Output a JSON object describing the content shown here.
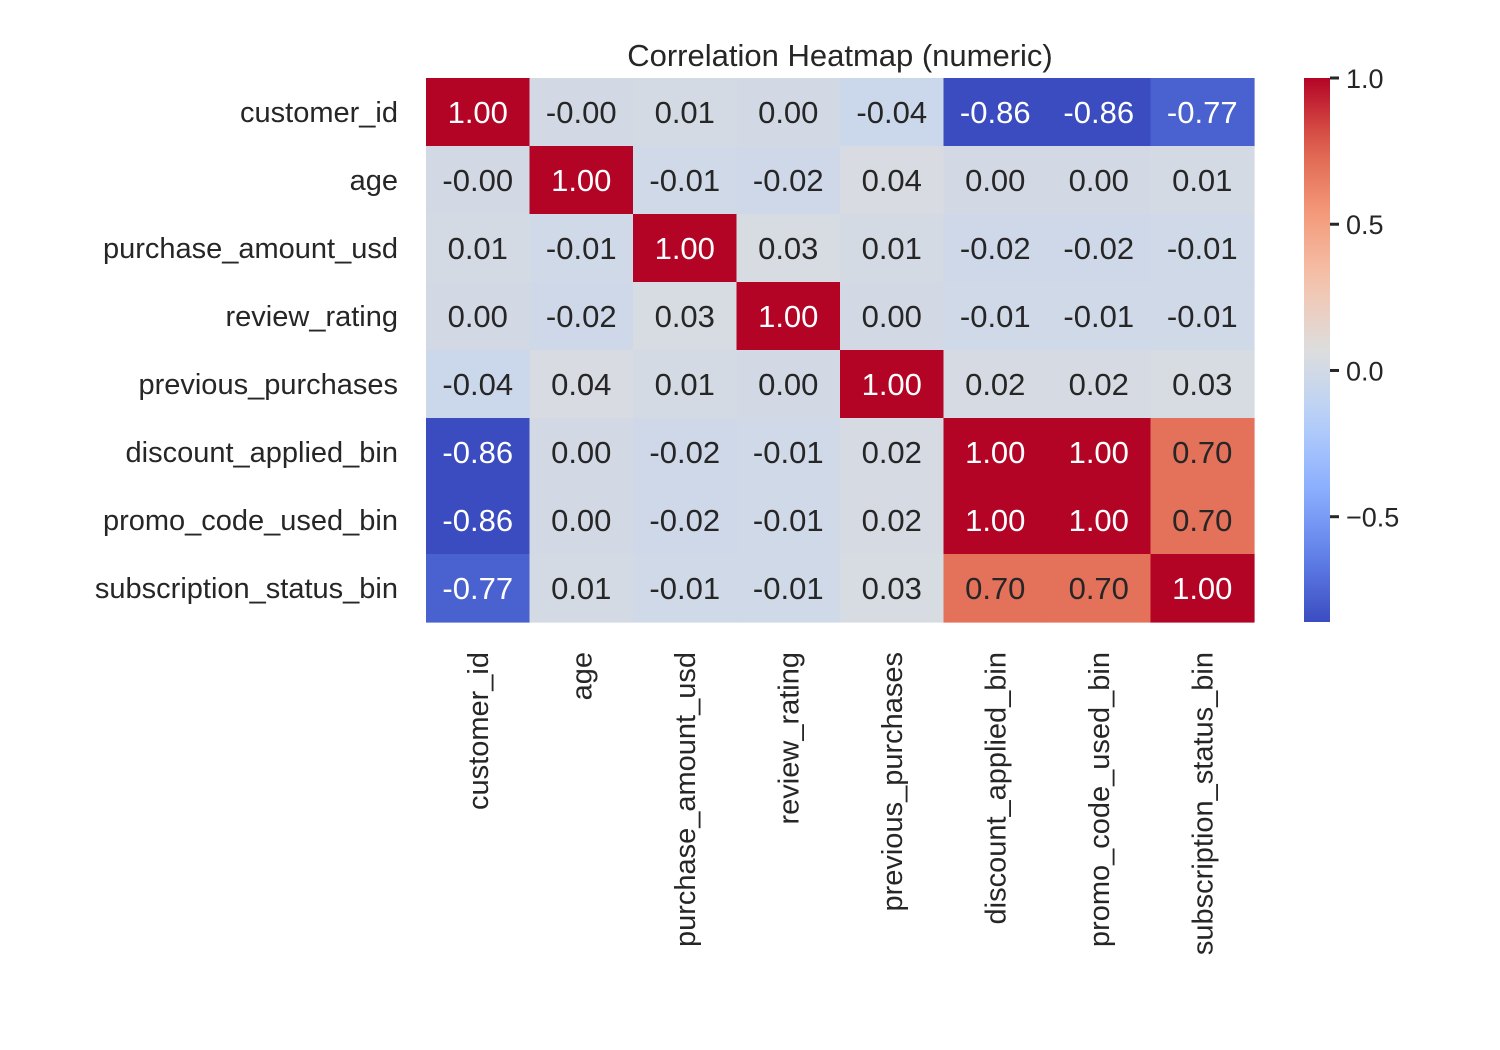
{
  "chart_data": {
    "type": "heatmap",
    "title": "Correlation Heatmap (numeric)",
    "xlabel": "",
    "ylabel": "",
    "colormap": "coolwarm",
    "vmin": -0.86,
    "vmax": 1.0,
    "row_labels": [
      "customer_id",
      "age",
      "purchase_amount_usd",
      "review_rating",
      "previous_purchases",
      "discount_applied_bin",
      "promo_code_used_bin",
      "subscription_status_bin"
    ],
    "col_labels": [
      "customer_id",
      "age",
      "purchase_amount_usd",
      "review_rating",
      "previous_purchases",
      "discount_applied_bin",
      "promo_code_used_bin",
      "subscription_status_bin"
    ],
    "values": [
      [
        1.0,
        -0.0,
        0.01,
        0.0,
        -0.04,
        -0.86,
        -0.86,
        -0.77
      ],
      [
        -0.0,
        1.0,
        -0.01,
        -0.02,
        0.04,
        0.0,
        0.0,
        0.01
      ],
      [
        0.01,
        -0.01,
        1.0,
        0.03,
        0.01,
        -0.02,
        -0.02,
        -0.01
      ],
      [
        0.0,
        -0.02,
        0.03,
        1.0,
        0.0,
        -0.01,
        -0.01,
        -0.01
      ],
      [
        -0.04,
        0.04,
        0.01,
        0.0,
        1.0,
        0.02,
        0.02,
        0.03
      ],
      [
        -0.86,
        0.0,
        -0.02,
        -0.01,
        0.02,
        1.0,
        1.0,
        0.7
      ],
      [
        -0.86,
        0.0,
        -0.02,
        -0.01,
        0.02,
        1.0,
        1.0,
        0.7
      ],
      [
        -0.77,
        0.01,
        -0.01,
        -0.01,
        0.03,
        0.7,
        0.7,
        1.0
      ]
    ],
    "annotations": [
      [
        "1.00",
        "-0.00",
        "0.01",
        "0.00",
        "-0.04",
        "-0.86",
        "-0.86",
        "-0.77"
      ],
      [
        "-0.00",
        "1.00",
        "-0.01",
        "-0.02",
        "0.04",
        "0.00",
        "0.00",
        "0.01"
      ],
      [
        "0.01",
        "-0.01",
        "1.00",
        "0.03",
        "0.01",
        "-0.02",
        "-0.02",
        "-0.01"
      ],
      [
        "0.00",
        "-0.02",
        "0.03",
        "1.00",
        "0.00",
        "-0.01",
        "-0.01",
        "-0.01"
      ],
      [
        "-0.04",
        "0.04",
        "0.01",
        "0.00",
        "1.00",
        "0.02",
        "0.02",
        "0.03"
      ],
      [
        "-0.86",
        "0.00",
        "-0.02",
        "-0.01",
        "0.02",
        "1.00",
        "1.00",
        "0.70"
      ],
      [
        "-0.86",
        "0.00",
        "-0.02",
        "-0.01",
        "0.02",
        "1.00",
        "1.00",
        "0.70"
      ],
      [
        "-0.77",
        "0.01",
        "-0.01",
        "-0.01",
        "0.03",
        "0.70",
        "0.70",
        "1.00"
      ]
    ],
    "colorbar": {
      "ticks": [
        1.0,
        0.5,
        0.0,
        -0.5
      ],
      "tick_labels": [
        "1.0",
        "0.5",
        "0.0",
        "−0.5"
      ]
    },
    "grid": false,
    "legend": "colorbar-right"
  }
}
